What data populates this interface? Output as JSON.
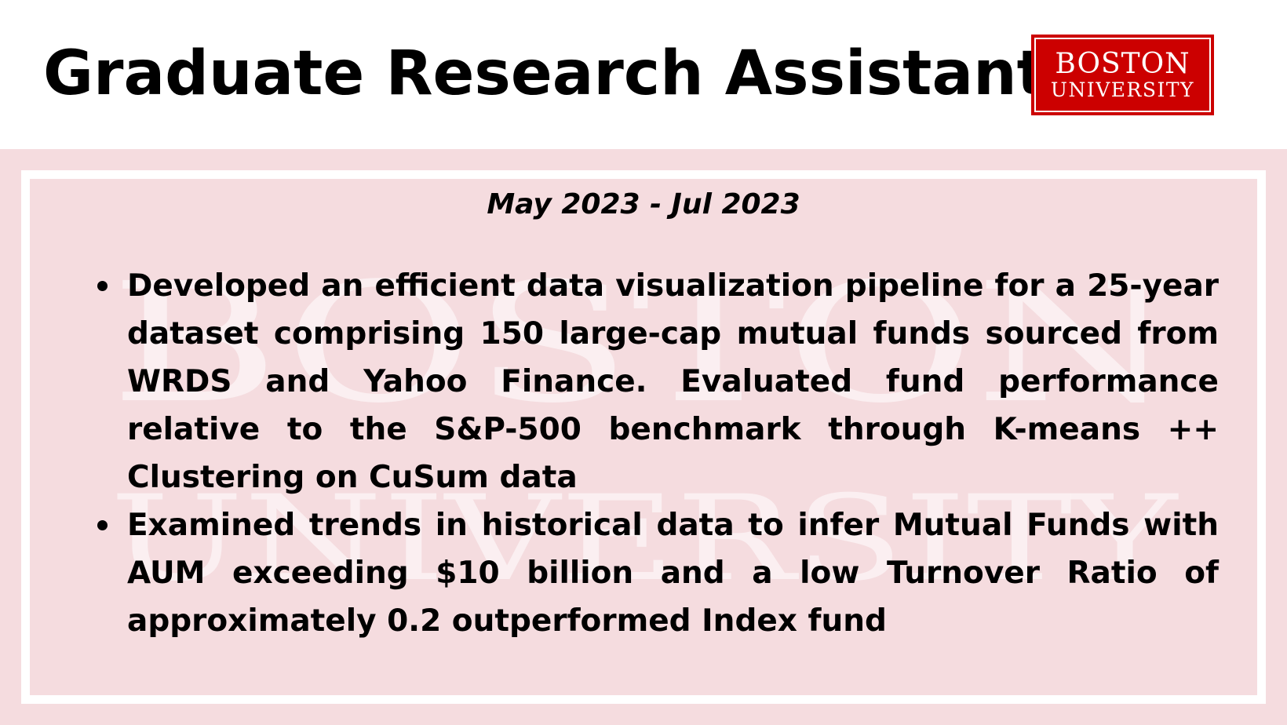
{
  "header": {
    "title": "Graduate Research Assistant",
    "logo": {
      "line1": "BOSTON",
      "line2": "UNIVERSITY",
      "background_color": "#cc0000",
      "text_color": "#ffffff"
    }
  },
  "content": {
    "date_range": "May 2023 - Jul 2023",
    "watermark": {
      "line1": "BOSTON",
      "line2": "UNIVERSITY"
    },
    "bullets": [
      "Developed an efficient data visualization pipeline for a 25-year dataset comprising 150 large-cap mutual funds sourced from WRDS and Yahoo Finance. Evaluated fund performance relative to the S&P-500 benchmark through K-means ++ Clustering on CuSum data",
      "Examined trends in historical data to infer Mutual Funds with AUM exceeding $10 billion and a low Turnover Ratio of approximately 0.2 outperformed Index fund"
    ]
  },
  "colors": {
    "band_background": "#f5dcdf",
    "frame": "#ffffff",
    "text": "#000000"
  }
}
